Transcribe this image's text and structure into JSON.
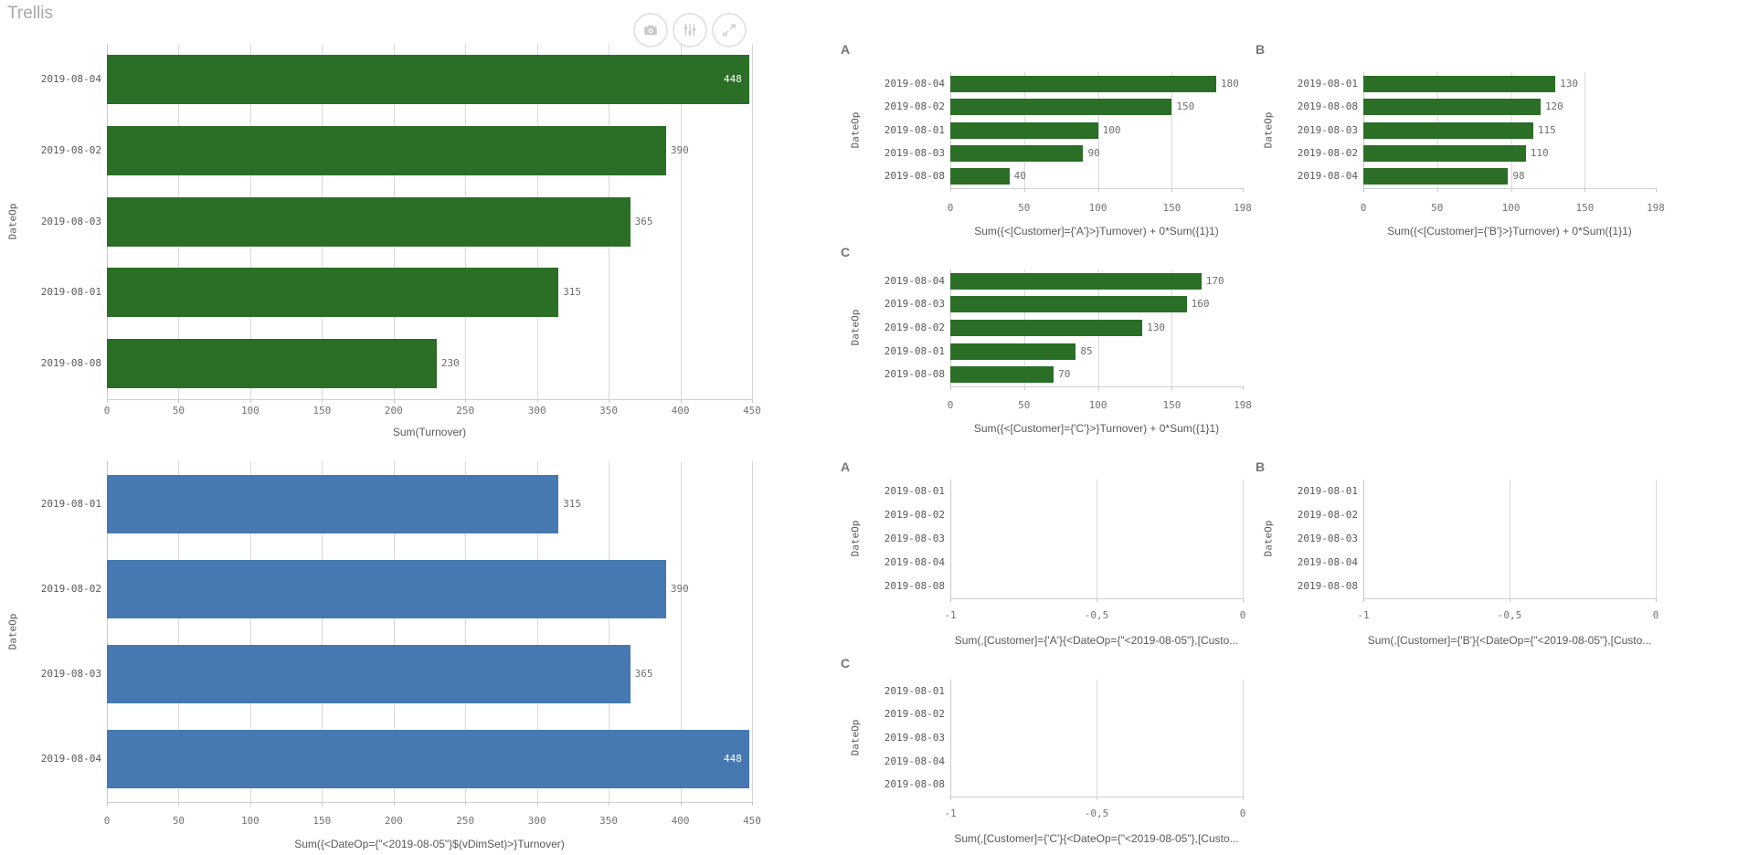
{
  "title": "Trellis",
  "toolbar": {
    "buttons": [
      {
        "name": "snapshot",
        "icon": "camera-icon"
      },
      {
        "name": "exploration-menu",
        "icon": "sliders-icon"
      },
      {
        "name": "fullscreen",
        "icon": "expand-icon"
      }
    ]
  },
  "colors": {
    "bar_green": "#2b6e26",
    "bar_blue": "#4678b2",
    "grid": "#d9d9d9",
    "axis": "#c8c8c8",
    "text": "#595959",
    "muted": "#737373",
    "title_gray": "#a8a8a8",
    "value_inside": "#ffffff"
  },
  "chart_data": [
    {
      "id": "turnover-main",
      "type": "bar",
      "orientation": "horizontal",
      "panel": null,
      "ylabel": "DateOp",
      "xlabel": "Sum(Turnover)",
      "categories": [
        "2019-08-04",
        "2019-08-02",
        "2019-08-03",
        "2019-08-01",
        "2019-08-08"
      ],
      "values": [
        448,
        390,
        365,
        315,
        230
      ],
      "xlim": [
        0,
        450
      ],
      "tick_values": [
        0,
        50,
        100,
        150,
        200,
        250,
        300,
        350,
        400,
        450
      ],
      "tick_labels": [
        "0",
        "50",
        "100",
        "150",
        "200",
        "250",
        "300",
        "350",
        "400",
        "450"
      ],
      "color": "bar_green"
    },
    {
      "id": "turnover-vdimset",
      "type": "bar",
      "orientation": "horizontal",
      "panel": null,
      "ylabel": "DateOp",
      "xlabel": "Sum({<DateOp={\"<2019-08-05\"}$(vDimSet)>}Turnover)",
      "categories": [
        "2019-08-01",
        "2019-08-02",
        "2019-08-03",
        "2019-08-04"
      ],
      "values": [
        315,
        390,
        365,
        448
      ],
      "xlim": [
        0,
        450
      ],
      "tick_values": [
        0,
        50,
        100,
        150,
        200,
        250,
        300,
        350,
        400,
        450
      ],
      "tick_labels": [
        "0",
        "50",
        "100",
        "150",
        "200",
        "250",
        "300",
        "350",
        "400",
        "450"
      ],
      "color": "bar_blue"
    },
    {
      "id": "trellis-top-a",
      "type": "bar",
      "orientation": "horizontal",
      "panel": "A",
      "ylabel": "DateOp",
      "xlabel": "Sum({<[Customer]={'A'}>}Turnover) + 0*Sum({1}1)",
      "categories": [
        "2019-08-04",
        "2019-08-02",
        "2019-08-01",
        "2019-08-03",
        "2019-08-08"
      ],
      "values": [
        180,
        150,
        100,
        90,
        40
      ],
      "xlim": [
        0,
        198
      ],
      "tick_values": [
        0,
        50,
        100,
        150,
        198
      ],
      "tick_labels": [
        "0",
        "50",
        "100",
        "150",
        "198"
      ],
      "color": "bar_green"
    },
    {
      "id": "trellis-top-b",
      "type": "bar",
      "orientation": "horizontal",
      "panel": "B",
      "ylabel": "DateOp",
      "xlabel": "Sum({<[Customer]={'B'}>}Turnover) + 0*Sum({1}1)",
      "categories": [
        "2019-08-01",
        "2019-08-08",
        "2019-08-03",
        "2019-08-02",
        "2019-08-04"
      ],
      "values": [
        130,
        120,
        115,
        110,
        98
      ],
      "xlim": [
        0,
        198
      ],
      "tick_values": [
        0,
        50,
        100,
        150,
        198
      ],
      "tick_labels": [
        "0",
        "50",
        "100",
        "150",
        "198"
      ],
      "color": "bar_green"
    },
    {
      "id": "trellis-top-c",
      "type": "bar",
      "orientation": "horizontal",
      "panel": "C",
      "ylabel": "DateOp",
      "xlabel": "Sum({<[Customer]={'C'}>}Turnover) + 0*Sum({1}1)",
      "categories": [
        "2019-08-04",
        "2019-08-03",
        "2019-08-02",
        "2019-08-01",
        "2019-08-08"
      ],
      "values": [
        170,
        160,
        130,
        85,
        70
      ],
      "xlim": [
        0,
        198
      ],
      "tick_values": [
        0,
        50,
        100,
        150,
        198
      ],
      "tick_labels": [
        "0",
        "50",
        "100",
        "150",
        "198"
      ],
      "color": "bar_green"
    },
    {
      "id": "trellis-bottom-a",
      "type": "bar",
      "orientation": "horizontal",
      "panel": "A",
      "ylabel": "DateOp",
      "xlabel": "Sum(,[Customer]={'A'}{<DateOp={\"<2019-08-05\"},[Custo...",
      "categories": [
        "2019-08-01",
        "2019-08-02",
        "2019-08-03",
        "2019-08-04",
        "2019-08-08"
      ],
      "values": [],
      "xlim": [
        -1,
        0
      ],
      "tick_values": [
        -1,
        -0.5,
        0
      ],
      "tick_labels": [
        "-1",
        "-0,5",
        "0"
      ],
      "color": "bar_green"
    },
    {
      "id": "trellis-bottom-b",
      "type": "bar",
      "orientation": "horizontal",
      "panel": "B",
      "ylabel": "DateOp",
      "xlabel": "Sum(,[Customer]={'B'}{<DateOp={\"<2019-08-05\"},[Custo...",
      "categories": [
        "2019-08-01",
        "2019-08-02",
        "2019-08-03",
        "2019-08-04",
        "2019-08-08"
      ],
      "values": [],
      "xlim": [
        -1,
        0
      ],
      "tick_values": [
        -1,
        -0.5,
        0
      ],
      "tick_labels": [
        "-1",
        "-0,5",
        "0"
      ],
      "color": "bar_green"
    },
    {
      "id": "trellis-bottom-c",
      "type": "bar",
      "orientation": "horizontal",
      "panel": "C",
      "ylabel": "DateOp",
      "xlabel": "Sum(,[Customer]={'C'}{<DateOp={\"<2019-08-05\"},[Custo...",
      "categories": [
        "2019-08-01",
        "2019-08-02",
        "2019-08-03",
        "2019-08-04",
        "2019-08-08"
      ],
      "values": [],
      "xlim": [
        -1,
        0
      ],
      "tick_values": [
        -1,
        -0.5,
        0
      ],
      "tick_labels": [
        "-1",
        "-0,5",
        "0"
      ],
      "color": "bar_green"
    }
  ]
}
